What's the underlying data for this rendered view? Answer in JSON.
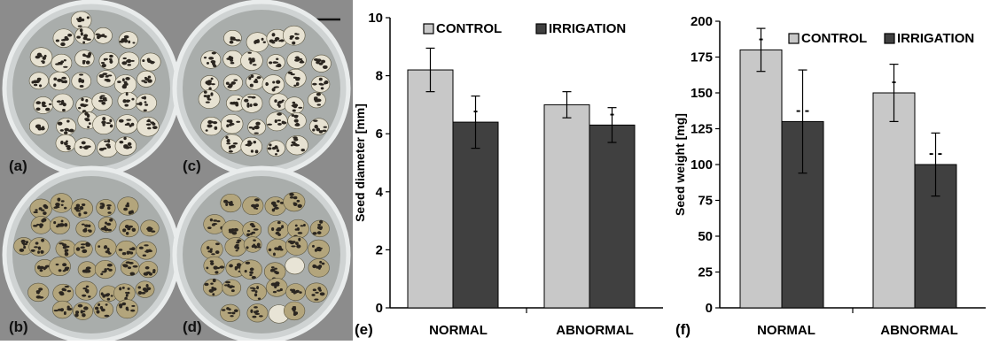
{
  "panels": {
    "a": "(a)",
    "b": "(b)",
    "c": "(c)",
    "d": "(d)",
    "e": "(e)",
    "f": "(f)"
  },
  "colors": {
    "control": "#c8c8c8",
    "irrigation": "#404040",
    "photo_bg": "#8a8a8a",
    "dish_light": "#e7e2d2",
    "dish_dark": "#b3a57c"
  },
  "chart_data": [
    {
      "type": "bar",
      "panel": "(e)",
      "categories": [
        "NORMAL",
        "ABNORMAL"
      ],
      "ylabel": "Seed diameter [mm]",
      "ylim": [
        0,
        10
      ],
      "yticks": [
        "0",
        "2",
        "4",
        "6",
        "8",
        "10"
      ],
      "legend": {
        "placement": "top",
        "entries": [
          "CONTROL",
          "IRRIGATION"
        ]
      },
      "series": [
        {
          "name": "CONTROL",
          "values": [
            8.2,
            7.0
          ],
          "errors": [
            0.75,
            0.45
          ],
          "marks": [
            "",
            ""
          ]
        },
        {
          "name": "IRRIGATION",
          "values": [
            6.4,
            6.3
          ],
          "errors": [
            0.9,
            0.6
          ],
          "marks": [
            "-",
            "-"
          ]
        }
      ]
    },
    {
      "type": "bar",
      "panel": "(f)",
      "categories": [
        "NORMAL",
        "ABNORMAL"
      ],
      "ylabel": "Seed weight [mg]",
      "ylim": [
        0,
        200
      ],
      "yticks": [
        "0",
        "25",
        "50",
        "75",
        "100",
        "125",
        "150",
        "175",
        "200"
      ],
      "legend": {
        "placement": "top",
        "entries": [
          "CONTROL",
          "IRRIGATION"
        ]
      },
      "series": [
        {
          "name": "CONTROL",
          "values": [
            180,
            150
          ],
          "errors": [
            15,
            20
          ],
          "marks": [
            "-",
            "-"
          ]
        },
        {
          "name": "IRRIGATION",
          "values": [
            130,
            100
          ],
          "errors": [
            36,
            22
          ],
          "marks": [
            "- -",
            "- -"
          ]
        }
      ]
    }
  ]
}
